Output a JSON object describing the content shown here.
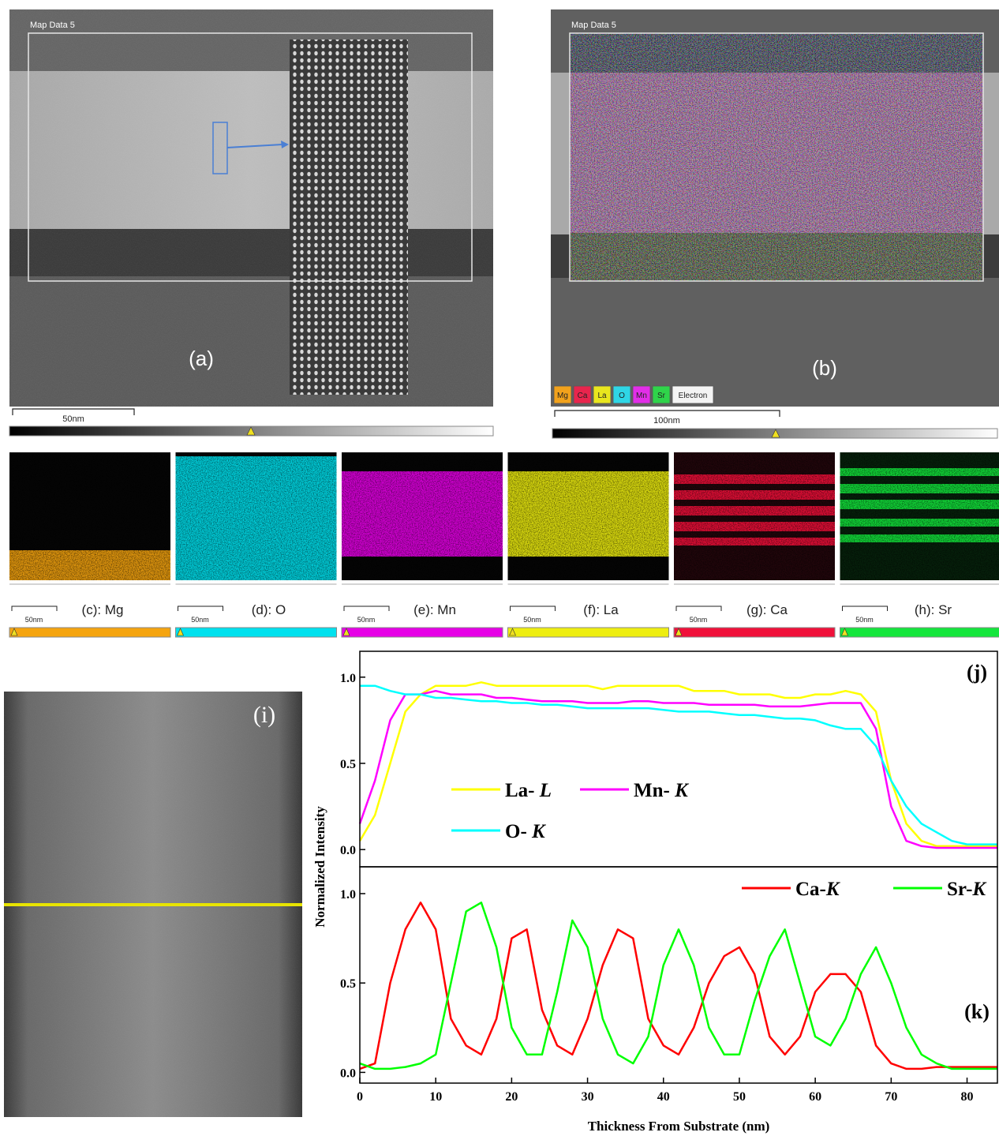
{
  "panels": {
    "a": {
      "header": "Map Data 5",
      "label": "(a)",
      "scale": "50nm"
    },
    "b": {
      "header": "Map Data 5",
      "label": "(b)",
      "scale": "100nm",
      "legend": [
        {
          "name": "Mg",
          "color": "#f2a21c"
        },
        {
          "name": "Ca",
          "color": "#e8254d"
        },
        {
          "name": "La",
          "color": "#e9e61e"
        },
        {
          "name": "O",
          "color": "#2fd6e6"
        },
        {
          "name": "Mn",
          "color": "#e22ee8"
        },
        {
          "name": "Sr",
          "color": "#2fd44a"
        },
        {
          "name": "Electron",
          "color": "#f4f4f4"
        }
      ]
    },
    "maps": [
      {
        "label": "(c): Mg",
        "scale": "50nm",
        "color": "#f5a40f"
      },
      {
        "label": "(d): O",
        "scale": "50nm",
        "color": "#00e1ee"
      },
      {
        "label": "(e): Mn",
        "scale": "50nm",
        "color": "#e600e6"
      },
      {
        "label": "(f): La",
        "scale": "50nm",
        "color": "#eeee10"
      },
      {
        "label": "(g): Ca",
        "scale": "50nm",
        "color": "#f0103a"
      },
      {
        "label": "(h): Sr",
        "scale": "50nm",
        "color": "#14e63c"
      }
    ],
    "i": {
      "label": "(i)"
    }
  },
  "chart_data": [
    {
      "type": "line",
      "label": "(j)",
      "y_label": "Normalized Intensity",
      "x": [
        0,
        2,
        4,
        6,
        8,
        10,
        12,
        14,
        16,
        18,
        20,
        22,
        24,
        26,
        28,
        30,
        32,
        34,
        36,
        38,
        40,
        42,
        44,
        46,
        48,
        50,
        52,
        54,
        56,
        58,
        60,
        62,
        64,
        66,
        68,
        70,
        72,
        74,
        76,
        78,
        80,
        82,
        84
      ],
      "xlim": [
        0,
        84
      ],
      "ylim": [
        -0.1,
        1.15
      ],
      "yticks": [
        {
          "value": 0,
          "label": "0.0"
        },
        {
          "value": 0.5,
          "label": "0.5"
        },
        {
          "value": 1,
          "label": "1.0"
        }
      ],
      "series": [
        {
          "name": "La- L",
          "color": "#ffff00",
          "values": [
            0.05,
            0.2,
            0.5,
            0.8,
            0.9,
            0.95,
            0.95,
            0.95,
            0.97,
            0.95,
            0.95,
            0.95,
            0.95,
            0.95,
            0.95,
            0.95,
            0.93,
            0.95,
            0.95,
            0.95,
            0.95,
            0.95,
            0.92,
            0.92,
            0.92,
            0.9,
            0.9,
            0.9,
            0.88,
            0.88,
            0.9,
            0.9,
            0.92,
            0.9,
            0.8,
            0.4,
            0.15,
            0.05,
            0.02,
            0.02,
            0.02,
            0.02,
            0.02
          ]
        },
        {
          "name": "Mn- K",
          "color": "#ff00ff",
          "values": [
            0.15,
            0.4,
            0.75,
            0.9,
            0.9,
            0.92,
            0.9,
            0.9,
            0.9,
            0.88,
            0.88,
            0.87,
            0.86,
            0.86,
            0.86,
            0.85,
            0.85,
            0.85,
            0.86,
            0.86,
            0.85,
            0.85,
            0.85,
            0.84,
            0.84,
            0.84,
            0.84,
            0.83,
            0.83,
            0.83,
            0.84,
            0.85,
            0.85,
            0.85,
            0.7,
            0.25,
            0.05,
            0.02,
            0.01,
            0.01,
            0.01,
            0.01,
            0.01
          ]
        },
        {
          "name": "O- K",
          "color": "#00ffff",
          "values": [
            0.95,
            0.95,
            0.92,
            0.9,
            0.9,
            0.88,
            0.88,
            0.87,
            0.86,
            0.86,
            0.85,
            0.85,
            0.84,
            0.84,
            0.83,
            0.82,
            0.82,
            0.82,
            0.82,
            0.82,
            0.81,
            0.8,
            0.8,
            0.8,
            0.79,
            0.78,
            0.78,
            0.77,
            0.76,
            0.76,
            0.75,
            0.72,
            0.7,
            0.7,
            0.6,
            0.4,
            0.25,
            0.15,
            0.1,
            0.05,
            0.03,
            0.03,
            0.03
          ]
        }
      ]
    },
    {
      "type": "line",
      "label": "(k)",
      "x_label": "Thickness From Substrate (nm)",
      "x": [
        0,
        2,
        4,
        6,
        8,
        10,
        12,
        14,
        16,
        18,
        20,
        22,
        24,
        26,
        28,
        30,
        32,
        34,
        36,
        38,
        40,
        42,
        44,
        46,
        48,
        50,
        52,
        54,
        56,
        58,
        60,
        62,
        64,
        66,
        68,
        70,
        72,
        74,
        76,
        78,
        80,
        82,
        84
      ],
      "xlim": [
        0,
        84
      ],
      "ylim": [
        -0.06,
        1.15
      ],
      "xticks": [
        0,
        10,
        20,
        30,
        40,
        50,
        60,
        70,
        80
      ],
      "yticks": [
        {
          "value": 0,
          "label": "0.0"
        },
        {
          "value": 0.5,
          "label": "0.5"
        },
        {
          "value": 1,
          "label": "1.0"
        }
      ],
      "series": [
        {
          "name": "Ca-K",
          "color": "#ff0000",
          "values": [
            0.02,
            0.05,
            0.5,
            0.8,
            0.95,
            0.8,
            0.3,
            0.15,
            0.1,
            0.3,
            0.75,
            0.8,
            0.35,
            0.15,
            0.1,
            0.3,
            0.6,
            0.8,
            0.75,
            0.3,
            0.15,
            0.1,
            0.25,
            0.5,
            0.65,
            0.7,
            0.55,
            0.2,
            0.1,
            0.2,
            0.45,
            0.55,
            0.55,
            0.45,
            0.15,
            0.05,
            0.02,
            0.02,
            0.03,
            0.03,
            0.03,
            0.03,
            0.03
          ]
        },
        {
          "name": "Sr-K",
          "color": "#00ff00",
          "values": [
            0.05,
            0.02,
            0.02,
            0.03,
            0.05,
            0.1,
            0.5,
            0.9,
            0.95,
            0.7,
            0.25,
            0.1,
            0.1,
            0.45,
            0.85,
            0.7,
            0.3,
            0.1,
            0.05,
            0.2,
            0.6,
            0.8,
            0.6,
            0.25,
            0.1,
            0.1,
            0.4,
            0.65,
            0.8,
            0.5,
            0.2,
            0.15,
            0.3,
            0.55,
            0.7,
            0.5,
            0.25,
            0.1,
            0.05,
            0.02,
            0.02,
            0.02,
            0.02
          ]
        }
      ]
    }
  ]
}
